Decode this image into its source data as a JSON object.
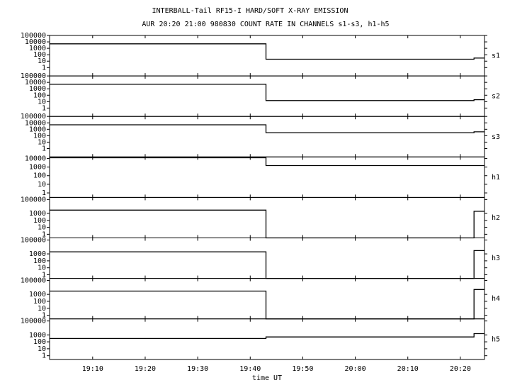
{
  "header": {
    "title": "INTERBALL-Tail RF15-I HARD/SOFT X-RAY EMISSION",
    "subtitle": "AUR 20:20 21:00 980830  COUNT RATE IN CHANNELS s1-s3, h1-h5",
    "xlabel": "time UT"
  },
  "chart_data": [
    {
      "type": "line",
      "log_y": true,
      "xlim": [
        1141.8,
        1224.6
      ],
      "ylim": [
        0.05,
        100000
      ],
      "yticks": [
        1,
        10,
        100,
        1000,
        10000,
        100000
      ],
      "x": [
        1141.8,
        1183,
        1183,
        1222.6,
        1222.6,
        1224.6
      ],
      "series": [
        {
          "name": "s1",
          "color": "#000000",
          "values": [
            5000,
            5000,
            20,
            20,
            30,
            30
          ]
        }
      ]
    },
    {
      "type": "line",
      "log_y": true,
      "xlim": [
        1141.8,
        1224.6
      ],
      "ylim": [
        0.05,
        100000
      ],
      "yticks": [
        1,
        10,
        100,
        1000,
        10000,
        100000
      ],
      "x": [
        1141.8,
        1183,
        1183,
        1222.6,
        1222.6,
        1224.6
      ],
      "series": [
        {
          "name": "s2",
          "color": "#000000",
          "values": [
            5000,
            5000,
            15,
            15,
            20,
            20
          ]
        }
      ]
    },
    {
      "type": "line",
      "log_y": true,
      "xlim": [
        1141.8,
        1224.6
      ],
      "ylim": [
        0.05,
        100000
      ],
      "yticks": [
        1,
        10,
        100,
        1000,
        10000,
        100000
      ],
      "x": [
        1141.8,
        1183,
        1183,
        1222.6,
        1222.6,
        1224.6
      ],
      "series": [
        {
          "name": "s3",
          "color": "#000000",
          "values": [
            5000,
            5000,
            300,
            300,
            400,
            400
          ]
        }
      ]
    },
    {
      "type": "line",
      "log_y": true,
      "xlim": [
        1141.8,
        1224.6
      ],
      "ylim": [
        0.3,
        15000
      ],
      "yticks": [
        1,
        10,
        100,
        1000,
        10000
      ],
      "x": [
        1141.8,
        1183,
        1183,
        1222.6,
        1222.6,
        1224.6
      ],
      "series": [
        {
          "name": "h1",
          "color": "#000000",
          "values": [
            12000,
            12000,
            1500,
            1500,
            1500,
            1500
          ]
        }
      ]
    },
    {
      "type": "line",
      "log_y": true,
      "xlim": [
        1141.8,
        1224.6
      ],
      "ylim": [
        0.3,
        200000
      ],
      "yticks": [
        1,
        10,
        100,
        1000,
        100000
      ],
      "x": [
        1141.8,
        1183,
        1183,
        1222.6,
        1222.6,
        1224.6
      ],
      "series": [
        {
          "name": "h2",
          "color": "#000000",
          "values": [
            3000,
            3000,
            0,
            0,
            2000,
            2000
          ]
        }
      ]
    },
    {
      "type": "line",
      "log_y": true,
      "xlim": [
        1141.8,
        1224.6
      ],
      "ylim": [
        0.3,
        200000
      ],
      "yticks": [
        1,
        10,
        100,
        1000,
        100000
      ],
      "x": [
        1141.8,
        1183,
        1183,
        1222.6,
        1222.6,
        1224.6
      ],
      "series": [
        {
          "name": "h3",
          "color": "#000000",
          "values": [
            2000,
            2000,
            0,
            0,
            3000,
            3000
          ]
        }
      ]
    },
    {
      "type": "line",
      "log_y": true,
      "xlim": [
        1141.8,
        1224.6
      ],
      "ylim": [
        0.3,
        200000
      ],
      "yticks": [
        1,
        10,
        100,
        1000,
        100000
      ],
      "x": [
        1141.8,
        1183,
        1183,
        1222.6,
        1222.6,
        1224.6
      ],
      "series": [
        {
          "name": "h4",
          "color": "#000000",
          "values": [
            3000,
            3000,
            0,
            0,
            5000,
            5000
          ]
        }
      ]
    },
    {
      "type": "line",
      "log_y": true,
      "xlim": [
        1141.8,
        1224.6
      ],
      "ylim": [
        0.3,
        200000
      ],
      "yticks": [
        1,
        10,
        100,
        1000,
        100000
      ],
      "x": [
        1141.8,
        1183,
        1183,
        1222.6,
        1222.6,
        1224.6
      ],
      "series": [
        {
          "name": "h5",
          "color": "#000000",
          "values": [
            300,
            300,
            500,
            500,
            1500,
            1500
          ]
        }
      ],
      "xticks": [
        {
          "value": 1150,
          "label": "19:10"
        },
        {
          "value": 1160,
          "label": "19:20"
        },
        {
          "value": 1170,
          "label": "19:30"
        },
        {
          "value": 1180,
          "label": "19:40"
        },
        {
          "value": 1190,
          "label": "19:50"
        },
        {
          "value": 1200,
          "label": "20:00"
        },
        {
          "value": 1210,
          "label": "20:10"
        },
        {
          "value": 1220,
          "label": "20:20"
        }
      ]
    }
  ]
}
